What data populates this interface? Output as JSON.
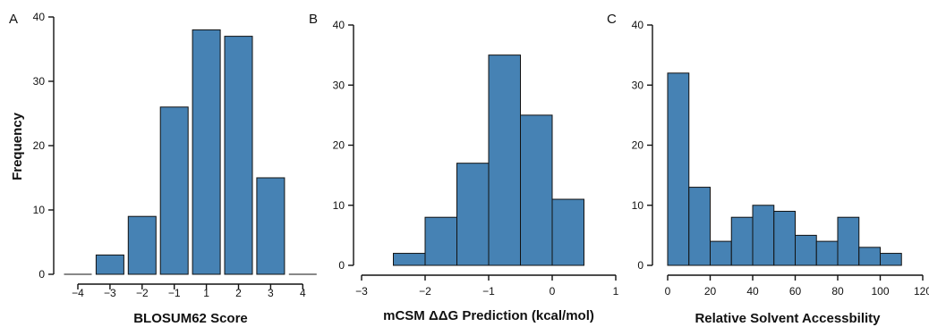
{
  "colors": {
    "bar_fill": "#4682b4",
    "bar_stroke": "#111111",
    "axis": "#111111"
  },
  "chart_data": [
    {
      "type": "bar",
      "panel_label": "A",
      "title": "",
      "xlabel": "BLOSUM62 Score",
      "ylabel": "Frequency",
      "categories": [
        "−4",
        "−3",
        "−2",
        "−1",
        "1",
        "2",
        "3",
        "4"
      ],
      "values": [
        0,
        3,
        9,
        26,
        38,
        37,
        15,
        0
      ],
      "ylim": [
        0,
        40
      ],
      "yticks": [
        0,
        10,
        20,
        30,
        40
      ],
      "grid": false
    },
    {
      "type": "bar",
      "subtype": "histogram",
      "panel_label": "B",
      "title": "",
      "xlabel": "mCSM ΔΔG Prediction (kcal/mol)",
      "ylabel": "",
      "bins": [
        [
          -2.5,
          -2.0
        ],
        [
          -2.0,
          -1.5
        ],
        [
          -1.5,
          -1.0
        ],
        [
          -1.0,
          -0.5
        ],
        [
          -0.5,
          0.0
        ],
        [
          0.0,
          0.5
        ]
      ],
      "values": [
        2,
        8,
        17,
        35,
        25,
        11
      ],
      "xlim": [
        -3,
        1
      ],
      "xticks": [
        -3,
        -2,
        -1,
        0,
        1
      ],
      "xtick_labels": [
        "−3",
        "−2",
        "−1",
        "0",
        "1"
      ],
      "ylim": [
        0,
        40
      ],
      "yticks": [
        0,
        10,
        20,
        30,
        40
      ],
      "grid": false
    },
    {
      "type": "bar",
      "subtype": "histogram",
      "panel_label": "C",
      "title": "",
      "xlabel": "Relative Solvent Accessbility",
      "ylabel": "",
      "bins": [
        [
          0,
          10
        ],
        [
          10,
          20
        ],
        [
          20,
          30
        ],
        [
          30,
          40
        ],
        [
          40,
          50
        ],
        [
          50,
          60
        ],
        [
          60,
          70
        ],
        [
          70,
          80
        ],
        [
          80,
          90
        ],
        [
          90,
          100
        ],
        [
          100,
          110
        ]
      ],
      "values": [
        32,
        13,
        4,
        8,
        10,
        9,
        5,
        4,
        8,
        3,
        2
      ],
      "xlim": [
        0,
        120
      ],
      "xticks": [
        0,
        20,
        40,
        60,
        80,
        100,
        120
      ],
      "xtick_labels": [
        "0",
        "20",
        "40",
        "60",
        "80",
        "100",
        "120"
      ],
      "ylim": [
        0,
        40
      ],
      "yticks": [
        0,
        10,
        20,
        30,
        40
      ],
      "grid": false
    }
  ]
}
